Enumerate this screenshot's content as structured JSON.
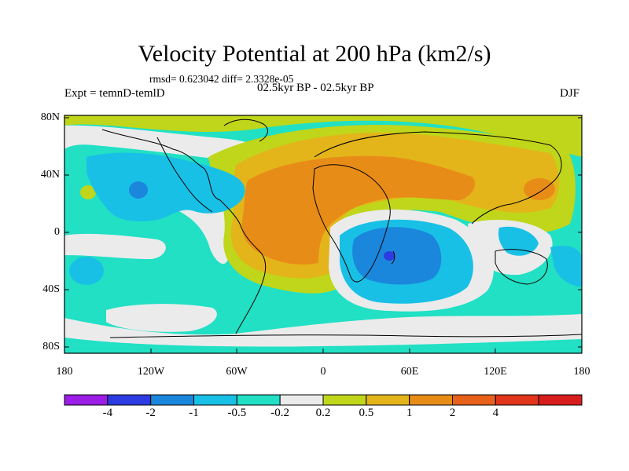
{
  "title": "Velocity Potential at 200 hPa (km2/s)",
  "stats": "rmsd= 0.623042 diff= 2.3328e-05",
  "experiment": "Expt = temnD-temlD",
  "period": "02.5kyr BP - 02.5kyr BP",
  "season": "DJF",
  "lat_labels": [
    "80N",
    "40N",
    "0",
    "40S",
    "80S"
  ],
  "lon_labels": [
    "180",
    "120W",
    "60W",
    "0",
    "60E",
    "120E",
    "180"
  ],
  "colorbar": {
    "colors": [
      "#9b1de6",
      "#2d3ce0",
      "#1a87dc",
      "#19c0e6",
      "#21e0c4",
      "#ebebeb",
      "#c0d61a",
      "#e3b51a",
      "#e88c18",
      "#e8611a",
      "#e1351a",
      "#d81d1d"
    ],
    "labels": [
      "-4",
      "-2",
      "-1",
      "-0.5",
      "-0.2",
      "0.2",
      "0.5",
      "1",
      "2",
      "4"
    ]
  }
}
